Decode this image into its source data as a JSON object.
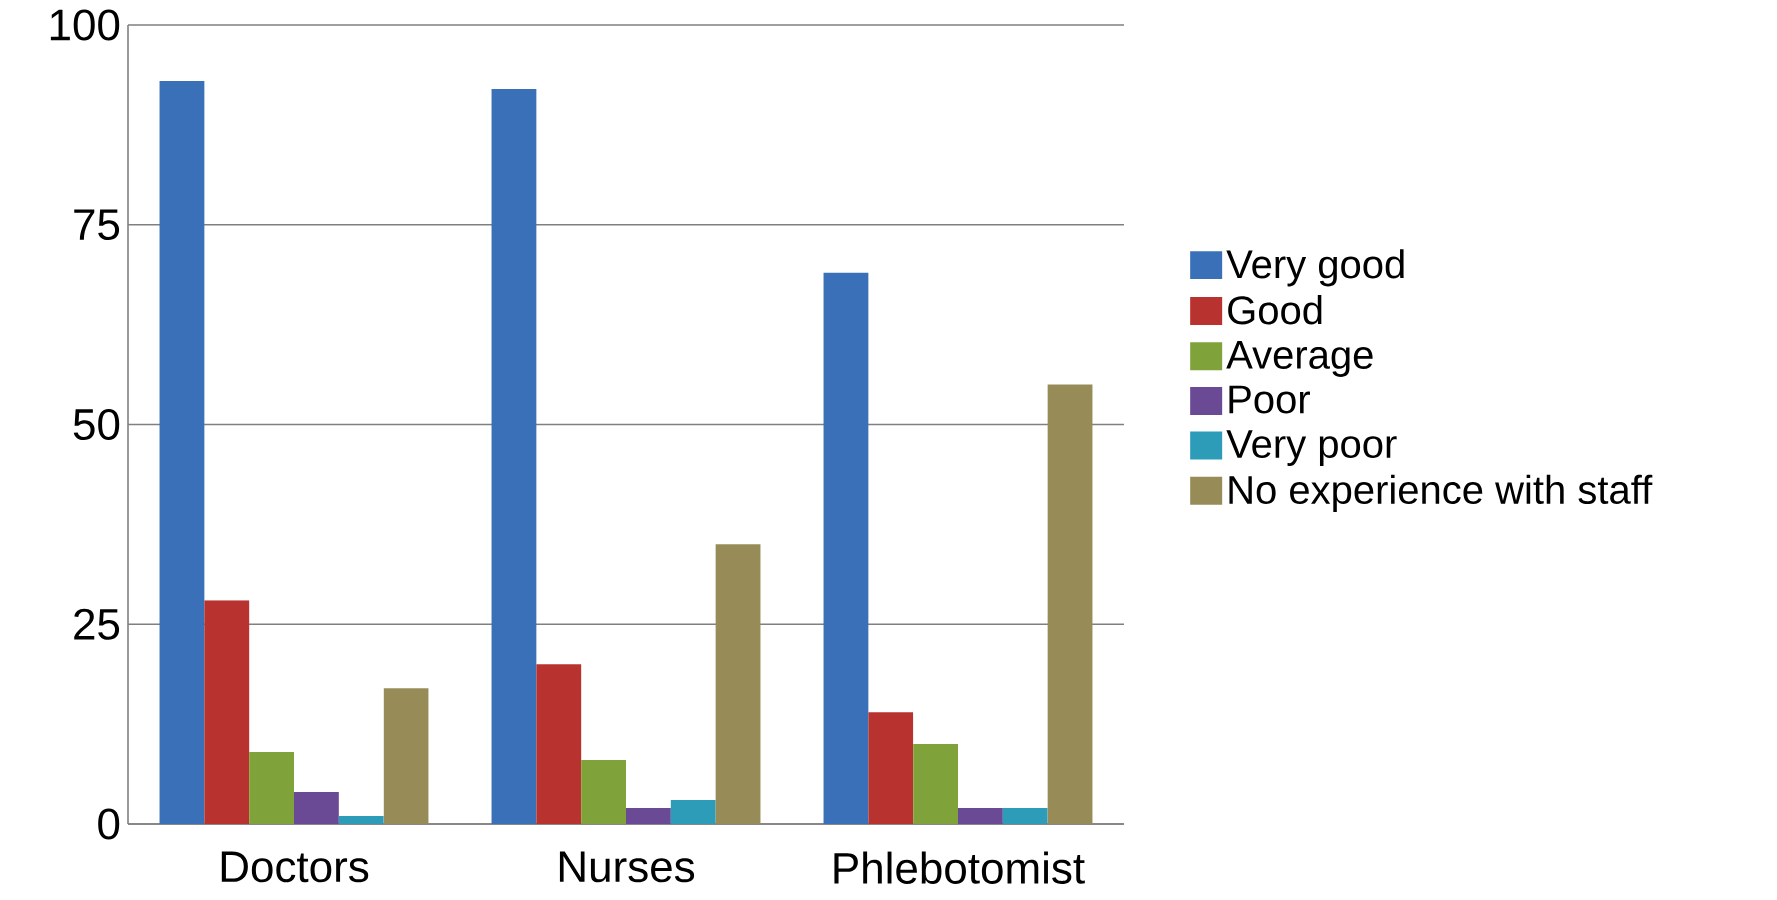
{
  "chart_data": {
    "type": "bar",
    "categories": [
      "Doctors",
      "Nurses",
      "Phlebotomist"
    ],
    "series": [
      {
        "name": "Very good",
        "color": "#3a70b8",
        "values": [
          93,
          92,
          69
        ]
      },
      {
        "name": "Good",
        "color": "#b83330",
        "values": [
          28,
          20,
          14
        ]
      },
      {
        "name": "Average",
        "color": "#7fa33a",
        "values": [
          9,
          8,
          10
        ]
      },
      {
        "name": "Poor",
        "color": "#6a4a94",
        "values": [
          4,
          2,
          2
        ]
      },
      {
        "name": "Very poor",
        "color": "#2c9cb8",
        "values": [
          1,
          3,
          2
        ]
      },
      {
        "name": "No experience with staff",
        "color": "#978c58",
        "values": [
          17,
          35,
          55
        ]
      }
    ],
    "ylim": [
      0,
      100
    ],
    "yticks": [
      0,
      25,
      50,
      75,
      100
    ],
    "grid": "y",
    "legend": "right"
  }
}
